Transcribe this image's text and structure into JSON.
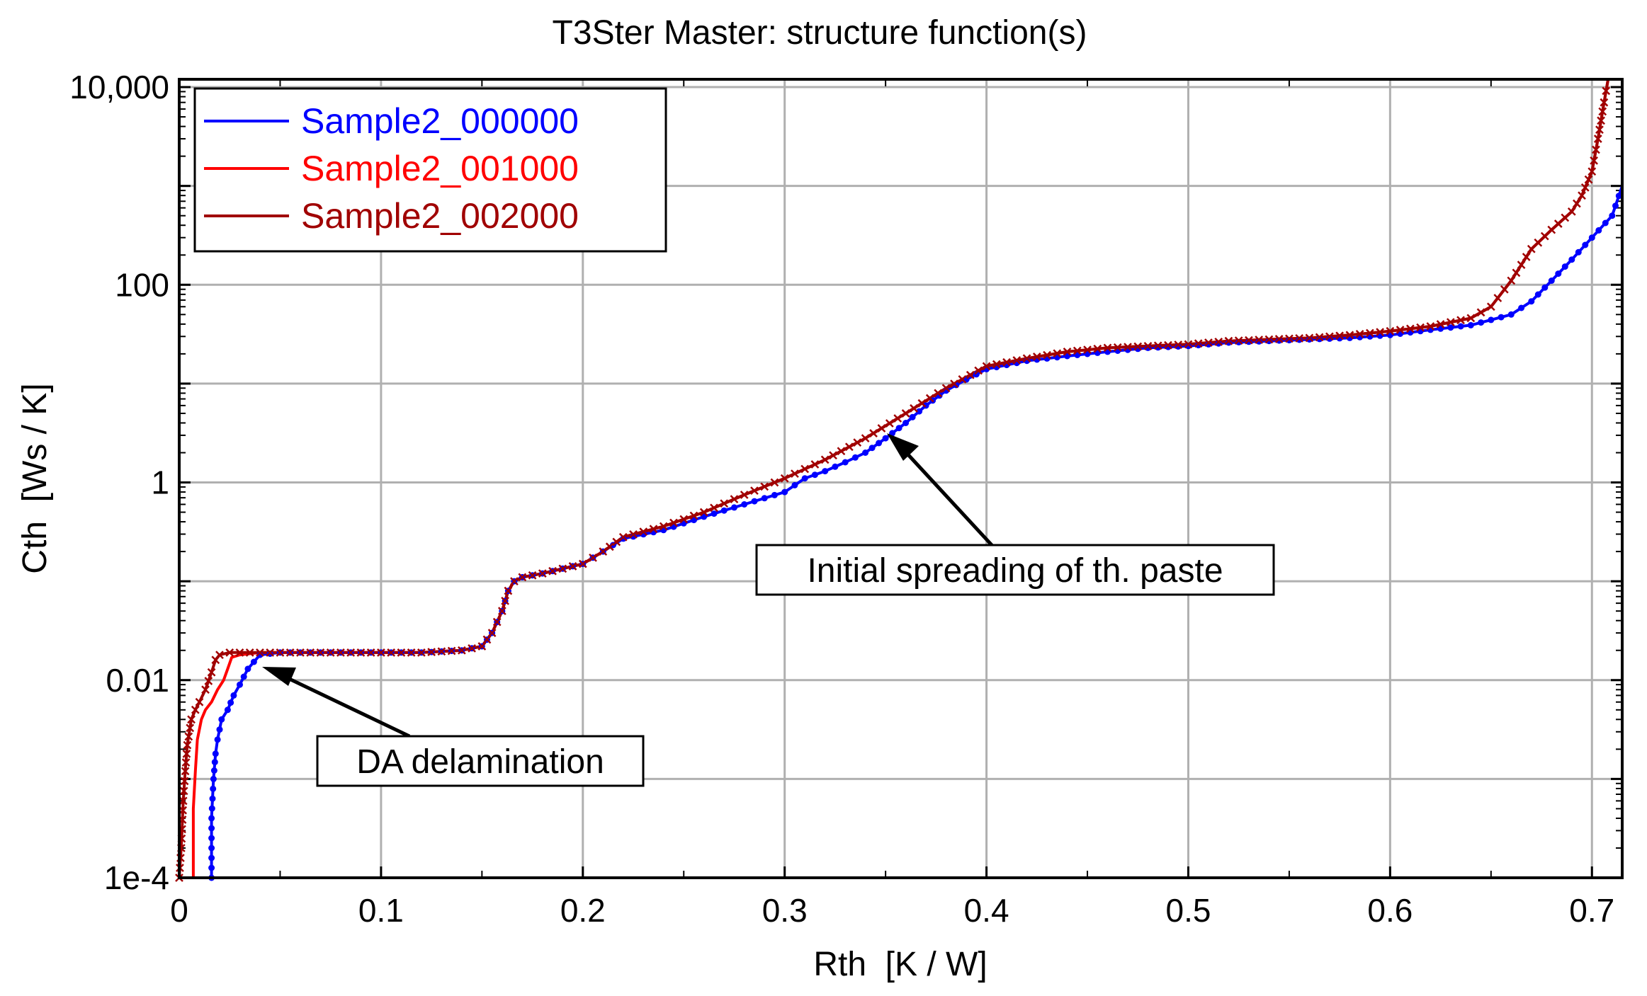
{
  "chart_data": {
    "type": "line",
    "title": "T3Ster Master: structure function(s)",
    "xlabel": "Rth  [K / W]",
    "ylabel": "Cth  [Ws / K]",
    "xlim": [
      0,
      0.715
    ],
    "ylim": [
      0.0001,
      12000
    ],
    "yscale": "log",
    "grid": true,
    "legend_position": "top-left",
    "x_ticks": [
      {
        "value": 0,
        "label": "0"
      },
      {
        "value": 0.1,
        "label": "0.1"
      },
      {
        "value": 0.2,
        "label": "0.2"
      },
      {
        "value": 0.3,
        "label": "0.3"
      },
      {
        "value": 0.4,
        "label": "0.4"
      },
      {
        "value": 0.5,
        "label": "0.5"
      },
      {
        "value": 0.6,
        "label": "0.6"
      },
      {
        "value": 0.7,
        "label": "0.7"
      }
    ],
    "y_ticks": [
      {
        "value": 0.0001,
        "label": "1e-4"
      },
      {
        "value": 0.01,
        "label": "0.01"
      },
      {
        "value": 1,
        "label": "1"
      },
      {
        "value": 100,
        "label": "100"
      },
      {
        "value": 10000,
        "label": "10,000"
      }
    ],
    "series": [
      {
        "name": "Sample2_000000",
        "color": "#0000ff",
        "marker": "dot",
        "x": [
          0.016,
          0.016,
          0.017,
          0.018,
          0.019,
          0.021,
          0.024,
          0.027,
          0.03,
          0.034,
          0.04,
          0.05,
          0.06,
          0.08,
          0.1,
          0.12,
          0.14,
          0.15,
          0.155,
          0.16,
          0.163,
          0.166,
          0.17,
          0.18,
          0.2,
          0.21,
          0.22,
          0.24,
          0.26,
          0.28,
          0.3,
          0.31,
          0.32,
          0.33,
          0.34,
          0.35,
          0.36,
          0.37,
          0.38,
          0.39,
          0.4,
          0.42,
          0.44,
          0.46,
          0.48,
          0.5,
          0.52,
          0.54,
          0.56,
          0.58,
          0.6,
          0.62,
          0.64,
          0.66,
          0.67,
          0.68,
          0.69,
          0.7,
          0.71,
          0.715
        ],
        "y": [
          0.0001,
          0.0004,
          0.001,
          0.0018,
          0.0025,
          0.004,
          0.005,
          0.007,
          0.009,
          0.013,
          0.018,
          0.019,
          0.019,
          0.019,
          0.019,
          0.019,
          0.02,
          0.022,
          0.03,
          0.05,
          0.08,
          0.1,
          0.11,
          0.12,
          0.15,
          0.2,
          0.27,
          0.33,
          0.45,
          0.6,
          0.8,
          1.1,
          1.3,
          1.6,
          2.0,
          2.8,
          4.0,
          6.0,
          8.5,
          11.0,
          14.0,
          17.0,
          19.0,
          21.0,
          23.0,
          24.0,
          26.0,
          27.0,
          28.0,
          29.0,
          31.0,
          35.0,
          39.0,
          50.0,
          68.0,
          110.0,
          180.0,
          300.0,
          500.0,
          1000.0
        ]
      },
      {
        "name": "Sample2_001000",
        "color": "#ff0000",
        "marker": "none",
        "x": [
          0.007,
          0.007,
          0.008,
          0.009,
          0.011,
          0.013,
          0.016,
          0.019,
          0.022,
          0.024,
          0.026,
          0.03,
          0.04,
          0.06,
          0.08,
          0.1,
          0.12,
          0.14,
          0.15,
          0.155,
          0.16,
          0.163,
          0.166,
          0.17,
          0.18,
          0.2,
          0.21,
          0.22,
          0.24,
          0.26,
          0.28,
          0.3,
          0.32,
          0.34,
          0.36,
          0.38,
          0.4,
          0.42,
          0.44,
          0.46,
          0.48,
          0.5,
          0.52,
          0.54,
          0.56,
          0.58,
          0.6,
          0.62,
          0.64,
          0.65,
          0.66,
          0.67,
          0.68,
          0.69,
          0.695,
          0.7,
          0.703,
          0.706,
          0.708
        ],
        "y": [
          0.0001,
          0.0005,
          0.0012,
          0.0025,
          0.004,
          0.005,
          0.006,
          0.008,
          0.01,
          0.013,
          0.017,
          0.018,
          0.019,
          0.019,
          0.019,
          0.019,
          0.019,
          0.02,
          0.022,
          0.03,
          0.05,
          0.08,
          0.1,
          0.11,
          0.12,
          0.15,
          0.2,
          0.28,
          0.36,
          0.5,
          0.75,
          1.1,
          1.7,
          2.8,
          5.0,
          9.0,
          15.0,
          18.0,
          21.0,
          23.0,
          24.0,
          25.0,
          27.0,
          28.0,
          29.0,
          31.0,
          34.0,
          38.0,
          46.0,
          60.0,
          110.0,
          230.0,
          360.0,
          550.0,
          800.0,
          1400.0,
          3000.0,
          7000.0,
          12000.0
        ]
      },
      {
        "name": "Sample2_002000",
        "color": "#a00000",
        "marker": "x",
        "x": [
          0.0,
          0.001,
          0.002,
          0.003,
          0.004,
          0.006,
          0.008,
          0.01,
          0.013,
          0.016,
          0.018,
          0.02,
          0.025,
          0.03,
          0.04,
          0.06,
          0.08,
          0.1,
          0.12,
          0.14,
          0.15,
          0.155,
          0.16,
          0.163,
          0.166,
          0.17,
          0.18,
          0.2,
          0.21,
          0.22,
          0.24,
          0.26,
          0.28,
          0.3,
          0.32,
          0.34,
          0.36,
          0.38,
          0.4,
          0.42,
          0.44,
          0.46,
          0.48,
          0.5,
          0.52,
          0.54,
          0.56,
          0.58,
          0.6,
          0.62,
          0.64,
          0.65,
          0.66,
          0.67,
          0.68,
          0.69,
          0.695,
          0.7,
          0.703,
          0.706,
          0.708
        ],
        "y": [
          0.0001,
          0.0002,
          0.0006,
          0.0012,
          0.0022,
          0.004,
          0.005,
          0.006,
          0.008,
          0.012,
          0.016,
          0.018,
          0.019,
          0.019,
          0.019,
          0.019,
          0.019,
          0.019,
          0.019,
          0.02,
          0.022,
          0.03,
          0.05,
          0.08,
          0.1,
          0.11,
          0.12,
          0.15,
          0.2,
          0.28,
          0.36,
          0.5,
          0.75,
          1.1,
          1.7,
          2.8,
          5.0,
          9.0,
          15.0,
          18.0,
          21.0,
          23.0,
          24.0,
          25.0,
          27.0,
          28.0,
          29.0,
          31.0,
          34.0,
          38.0,
          46.0,
          60.0,
          110.0,
          230.0,
          360.0,
          550.0,
          800.0,
          1400.0,
          3000.0,
          7000.0,
          12000.0
        ]
      }
    ],
    "annotations": [
      {
        "text": "DA delamination",
        "target_x": 0.042,
        "target_y": 0.0135
      },
      {
        "text": "Initial spreading of th. paste",
        "target_x": 0.35,
        "target_y": 2.8
      }
    ]
  }
}
